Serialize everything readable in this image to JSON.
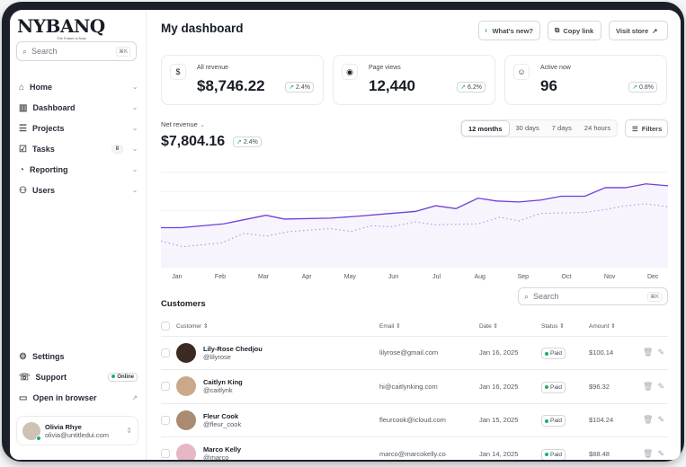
{
  "brand": {
    "logo": "NYBANQ",
    "tagline": "The Future is Now"
  },
  "sidebar": {
    "search_placeholder": "Search",
    "search_shortcut": "⌘K",
    "items": [
      {
        "label": "Home",
        "icon": "home-icon"
      },
      {
        "label": "Dashboard",
        "icon": "bar-chart-icon"
      },
      {
        "label": "Projects",
        "icon": "layers-icon"
      },
      {
        "label": "Tasks",
        "icon": "check-square-icon",
        "badge": "8"
      },
      {
        "label": "Reporting",
        "icon": "pie-chart-icon"
      },
      {
        "label": "Users",
        "icon": "users-icon"
      }
    ],
    "footer": [
      {
        "label": "Settings",
        "icon": "gear-icon"
      },
      {
        "label": "Support",
        "icon": "support-icon",
        "badge": "Online"
      },
      {
        "label": "Open in browser",
        "icon": "browser-icon"
      }
    ],
    "user": {
      "name": "Olivia Rhye",
      "email": "olivia@untitledui.com"
    }
  },
  "header": {
    "title": "My dashboard",
    "whats_new": "What's new?",
    "copy_link": "Copy link",
    "visit_store": "Visit store"
  },
  "stats": [
    {
      "label": "All revenue",
      "value": "$8,746.22",
      "change": "2.4%",
      "icon": "dollar-icon"
    },
    {
      "label": "Page views",
      "value": "12,440",
      "change": "6.2%",
      "icon": "eye-icon"
    },
    {
      "label": "Active now",
      "value": "96",
      "change": "0.8%",
      "icon": "user-circle-icon"
    }
  ],
  "revenue": {
    "label": "Net revenue",
    "value": "$7,804.16",
    "change": "2.4%",
    "ranges": [
      "12 months",
      "30 days",
      "7 days",
      "24 hours"
    ],
    "selected_range": "12 months",
    "filters": "Filters"
  },
  "chart_data": {
    "type": "line",
    "categories": [
      "Jan",
      "Feb",
      "Mar",
      "Apr",
      "May",
      "Jun",
      "Jul",
      "Aug",
      "Sep",
      "Oct",
      "Nov",
      "Dec"
    ],
    "grid": true,
    "accent": "#6e3fd8",
    "series": [
      {
        "style": "solid",
        "x": [
          -0.35,
          0.12,
          1.1,
          2.08,
          2.5,
          3.57,
          4.2,
          4.98,
          5.53,
          6.0,
          6.47,
          6.98,
          7.41,
          7.92,
          8.43,
          8.9,
          9.45,
          9.92,
          10.39,
          10.86,
          11.37
        ],
        "y": [
          42,
          42,
          46,
          55,
          51,
          52,
          54,
          57,
          59,
          65,
          62,
          73,
          70,
          69,
          71,
          75,
          75,
          84,
          84,
          88,
          86
        ]
      },
      {
        "style": "dotted",
        "x": [
          -0.35,
          0.15,
          1.06,
          1.57,
          2.08,
          2.63,
          3.57,
          4.04,
          4.51,
          4.98,
          5.53,
          6.0,
          6.98,
          7.49,
          7.92,
          8.43,
          9.45,
          9.92,
          10.39,
          10.86,
          11.37
        ],
        "y": [
          28,
          22,
          26,
          36,
          33,
          38,
          41,
          38,
          44,
          43,
          48,
          45,
          46,
          53,
          49,
          57,
          58,
          61,
          65,
          67,
          64
        ]
      }
    ]
  },
  "customers": {
    "title": "Customers",
    "search_placeholder": "Search",
    "search_shortcut": "⌘K",
    "columns": [
      "Customer",
      "Email",
      "Date",
      "Status",
      "Amount"
    ],
    "rows": [
      {
        "name": "Lily-Rose Chedjou",
        "handle": "@lilyrose",
        "email": "lilyrose@gmail.com",
        "date": "Jan 16, 2025",
        "status": "Paid",
        "amount": "$100.14",
        "avatar": "#3a2a22"
      },
      {
        "name": "Caitlyn King",
        "handle": "@caitlynk",
        "email": "hi@caitlynking.com",
        "date": "Jan 16, 2025",
        "status": "Paid",
        "amount": "$96.32",
        "avatar": "#c9a98a"
      },
      {
        "name": "Fleur Cook",
        "handle": "@fleur_cook",
        "email": "fleurcook@icloud.com",
        "date": "Jan 15, 2025",
        "status": "Paid",
        "amount": "$104.24",
        "avatar": "#a88b70"
      },
      {
        "name": "Marco Kelly",
        "handle": "@marco",
        "email": "marco@marcokelly.co",
        "date": "Jan 14, 2025",
        "status": "Paid",
        "amount": "$88.48",
        "avatar": "#e7b7c4"
      }
    ]
  }
}
